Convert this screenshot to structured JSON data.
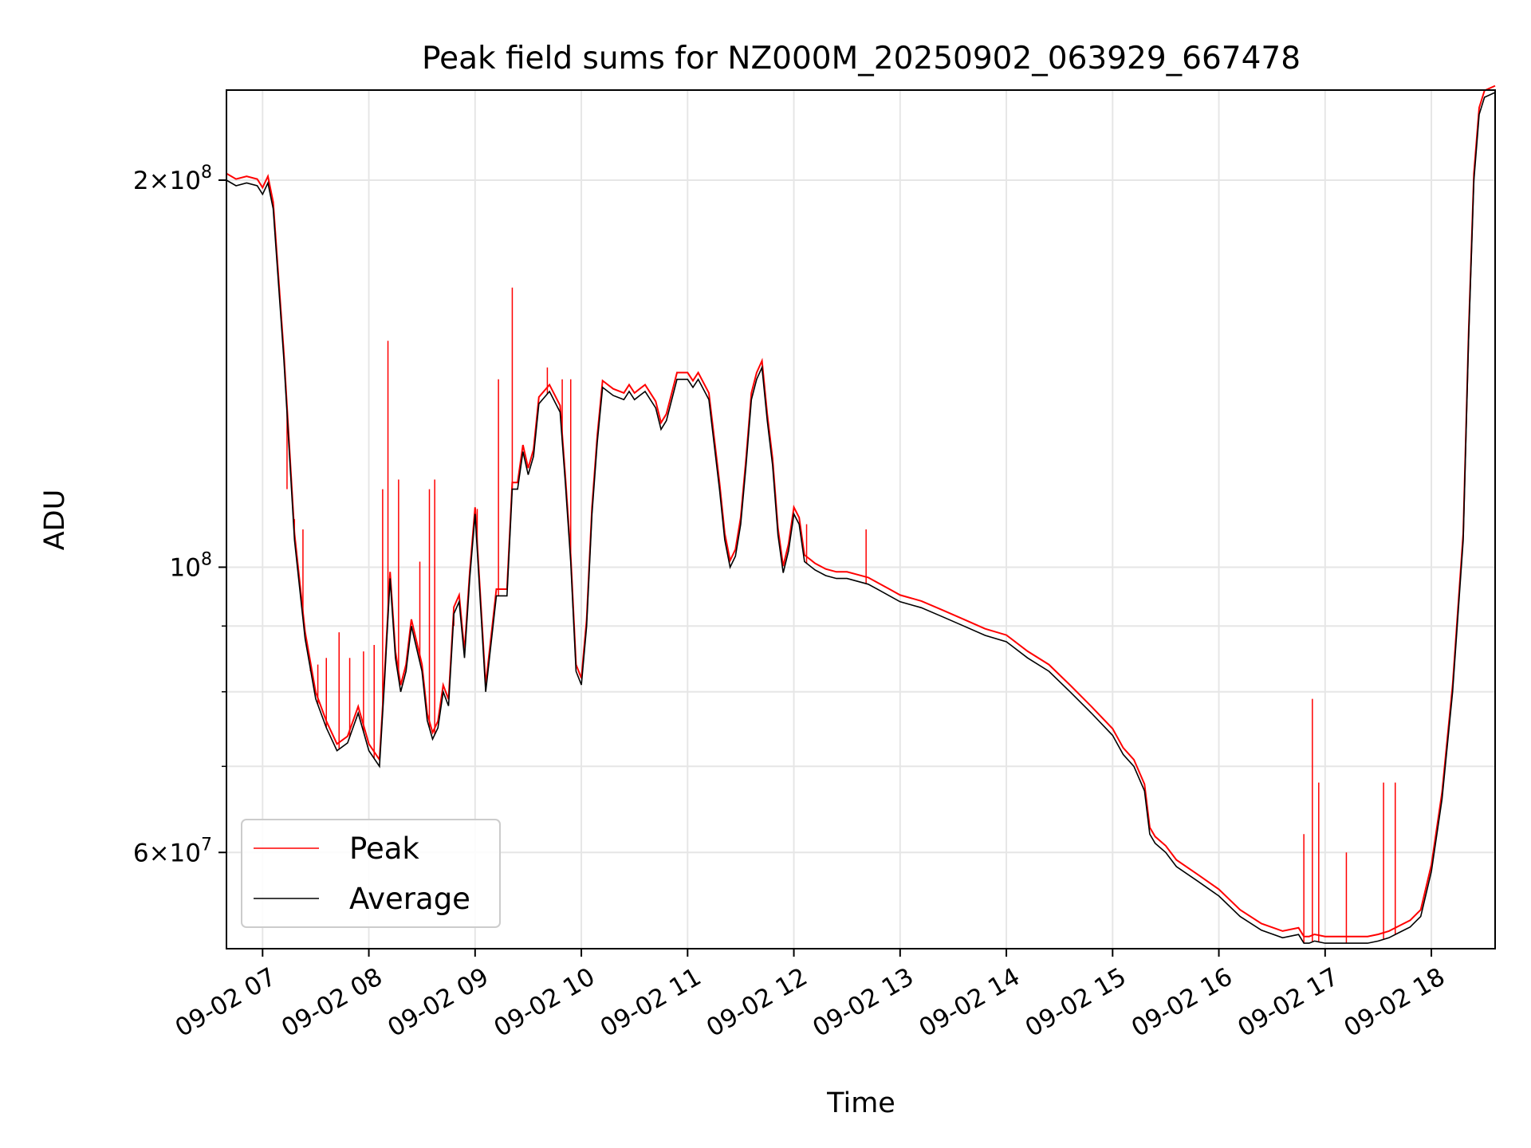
{
  "chart_data": {
    "type": "line",
    "title": "Peak field sums for NZ000M_20250902_063929_667478",
    "xlabel": "Time",
    "ylabel": "ADU",
    "x_unit": "hours (decimal, 2025-09-02)",
    "xlim": [
      6.66,
      18.6
    ],
    "x_ticks": [
      7,
      8,
      9,
      10,
      11,
      12,
      13,
      14,
      15,
      16,
      17,
      18
    ],
    "x_tick_labels": [
      "09-02 07",
      "09-02 08",
      "09-02 09",
      "09-02 10",
      "09-02 11",
      "09-02 12",
      "09-02 13",
      "09-02 14",
      "09-02 15",
      "09-02 16",
      "09-02 17",
      "09-02 18"
    ],
    "y_scale": "log",
    "ylim": [
      50500000,
      235000000
    ],
    "y_major_ticks": [
      {
        "value": 60000000,
        "mant": "6",
        "exp": "7"
      },
      {
        "value": 100000000,
        "mant": "",
        "exp": "8"
      },
      {
        "value": 200000000,
        "mant": "2",
        "exp": "8"
      }
    ],
    "y_minor_ticks": [
      50000000,
      70000000,
      80000000,
      90000000
    ],
    "grid": true,
    "legend_position": "lower left",
    "series": [
      {
        "name": "Average",
        "color": "#000000",
        "x": [
          6.66,
          6.75,
          6.85,
          6.95,
          7.0,
          7.05,
          7.1,
          7.2,
          7.3,
          7.4,
          7.5,
          7.6,
          7.7,
          7.8,
          7.9,
          8.0,
          8.1,
          8.15,
          8.2,
          8.25,
          8.3,
          8.35,
          8.4,
          8.5,
          8.55,
          8.6,
          8.65,
          8.7,
          8.75,
          8.8,
          8.85,
          8.9,
          8.95,
          9.0,
          9.1,
          9.2,
          9.3,
          9.35,
          9.4,
          9.45,
          9.5,
          9.55,
          9.6,
          9.7,
          9.8,
          9.85,
          9.9,
          9.95,
          10.0,
          10.05,
          10.1,
          10.15,
          10.2,
          10.3,
          10.4,
          10.45,
          10.5,
          10.55,
          10.6,
          10.7,
          10.75,
          10.8,
          10.9,
          11.0,
          11.05,
          11.1,
          11.2,
          11.3,
          11.35,
          11.4,
          11.45,
          11.5,
          11.55,
          11.6,
          11.65,
          11.7,
          11.75,
          11.8,
          11.85,
          11.9,
          11.95,
          12.0,
          12.05,
          12.1,
          12.2,
          12.3,
          12.4,
          12.5,
          12.6,
          12.7,
          12.8,
          12.9,
          13.0,
          13.2,
          13.4,
          13.6,
          13.8,
          14.0,
          14.2,
          14.4,
          14.6,
          14.8,
          15.0,
          15.1,
          15.2,
          15.3,
          15.35,
          15.4,
          15.5,
          15.6,
          15.8,
          16.0,
          16.2,
          16.4,
          16.6,
          16.75,
          16.8,
          16.85,
          16.9,
          17.0,
          17.2,
          17.4,
          17.5,
          17.6,
          17.7,
          17.8,
          17.9,
          18.0,
          18.1,
          18.2,
          18.3,
          18.35,
          18.4,
          18.45,
          18.5,
          18.6
        ],
        "values": [
          200000000,
          198000000,
          199000000,
          198000000,
          195000000,
          199000000,
          190000000,
          145000000,
          105000000,
          88000000,
          79000000,
          75000000,
          72000000,
          73000000,
          77000000,
          72000000,
          70000000,
          82000000,
          98000000,
          85000000,
          80000000,
          83000000,
          90000000,
          83000000,
          76000000,
          73500000,
          75000000,
          80000000,
          78000000,
          92000000,
          94000000,
          85000000,
          98000000,
          110000000,
          80000000,
          95000000,
          95000000,
          115000000,
          115000000,
          123000000,
          118000000,
          122000000,
          134000000,
          137000000,
          132000000,
          116000000,
          101000000,
          83000000,
          81000000,
          90000000,
          110000000,
          125000000,
          138000000,
          136000000,
          135000000,
          137000000,
          135000000,
          136000000,
          137000000,
          133000000,
          128000000,
          130000000,
          140000000,
          140000000,
          138000000,
          140000000,
          135000000,
          115000000,
          105000000,
          100000000,
          102000000,
          108000000,
          120000000,
          135000000,
          140000000,
          143000000,
          130000000,
          120000000,
          106000000,
          99000000,
          103000000,
          110000000,
          108000000,
          101000000,
          99500000,
          98500000,
          98000000,
          98000000,
          97500000,
          97000000,
          96000000,
          95000000,
          94000000,
          93000000,
          91500000,
          90000000,
          88500000,
          87500000,
          85000000,
          83000000,
          80000000,
          77000000,
          74000000,
          71500000,
          70000000,
          67000000,
          62000000,
          61000000,
          60000000,
          58500000,
          57000000,
          55500000,
          53500000,
          52200000,
          51500000,
          51800000,
          51000000,
          51000000,
          51200000,
          51000000,
          51000000,
          51000000,
          51200000,
          51500000,
          52000000,
          52500000,
          53500000,
          58000000,
          66000000,
          80000000,
          105000000,
          150000000,
          200000000,
          225000000,
          232000000,
          234000000
        ]
      },
      {
        "name": "Peak",
        "color": "#ff0000",
        "spikes": [
          {
            "x": 7.23,
            "value": 115000000
          },
          {
            "x": 7.3,
            "value": 109000000
          },
          {
            "x": 7.38,
            "value": 107000000
          },
          {
            "x": 7.45,
            "value": 83000000
          },
          {
            "x": 7.52,
            "value": 84000000
          },
          {
            "x": 7.6,
            "value": 85000000
          },
          {
            "x": 7.72,
            "value": 89000000
          },
          {
            "x": 7.82,
            "value": 85000000
          },
          {
            "x": 7.95,
            "value": 86000000
          },
          {
            "x": 8.05,
            "value": 87000000
          },
          {
            "x": 8.13,
            "value": 115000000
          },
          {
            "x": 8.18,
            "value": 150000000
          },
          {
            "x": 8.28,
            "value": 117000000
          },
          {
            "x": 8.48,
            "value": 101000000
          },
          {
            "x": 8.57,
            "value": 115000000
          },
          {
            "x": 8.62,
            "value": 117000000
          },
          {
            "x": 8.8,
            "value": 90000000
          },
          {
            "x": 9.02,
            "value": 111000000
          },
          {
            "x": 9.22,
            "value": 140000000
          },
          {
            "x": 9.35,
            "value": 165000000
          },
          {
            "x": 9.68,
            "value": 143000000
          },
          {
            "x": 9.82,
            "value": 140000000
          },
          {
            "x": 9.9,
            "value": 140000000
          },
          {
            "x": 12.12,
            "value": 108000000
          },
          {
            "x": 12.68,
            "value": 107000000
          },
          {
            "x": 16.8,
            "value": 62000000
          },
          {
            "x": 16.88,
            "value": 79000000
          },
          {
            "x": 16.94,
            "value": 68000000
          },
          {
            "x": 17.2,
            "value": 60000000
          },
          {
            "x": 17.55,
            "value": 68000000
          },
          {
            "x": 17.66,
            "value": 68000000
          }
        ]
      }
    ]
  }
}
